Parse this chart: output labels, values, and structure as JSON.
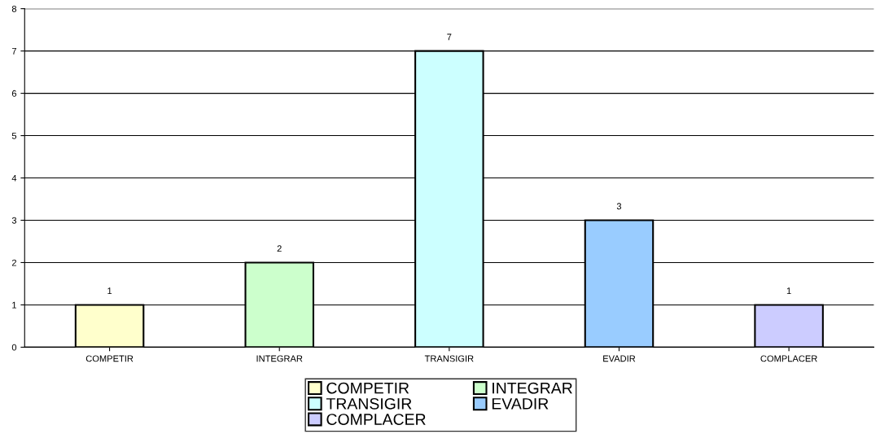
{
  "chart_data": {
    "type": "bar",
    "categories": [
      "COMPETIR",
      "INTEGRAR",
      "TRANSIGIR",
      "EVADIR",
      "COMPLACER"
    ],
    "series": [
      {
        "name": "COMPETIR",
        "color": "#ffffcc",
        "values": [
          1,
          null,
          null,
          null,
          null
        ]
      },
      {
        "name": "INTEGRAR",
        "color": "#ccffcc",
        "values": [
          null,
          2,
          null,
          null,
          null
        ]
      },
      {
        "name": "TRANSIGIR",
        "color": "#ccffff",
        "values": [
          null,
          null,
          7,
          null,
          null
        ]
      },
      {
        "name": "EVADIR",
        "color": "#99ccff",
        "values": [
          null,
          null,
          null,
          3,
          null
        ]
      },
      {
        "name": "COMPLACER",
        "color": "#ccccff",
        "values": [
          null,
          null,
          null,
          null,
          1
        ]
      }
    ],
    "ylim": [
      0,
      8
    ],
    "yticks": [
      0,
      1,
      2,
      3,
      4,
      5,
      6,
      7,
      8
    ],
    "grid": "y",
    "data_labels": true,
    "legend": "bottom"
  }
}
